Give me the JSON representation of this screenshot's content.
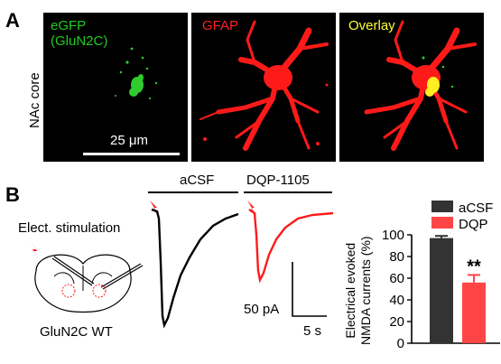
{
  "panel_a": {
    "letter": "A",
    "row_label": "NAc core",
    "images": [
      {
        "label_line1": "eGFP",
        "label_line2": "(GluN2C)",
        "label_color": "#22cc22"
      },
      {
        "label_line1": "GFAP",
        "label_line2": "",
        "label_color": "#ff2020"
      },
      {
        "label_line1": "Overlay",
        "label_line2": "",
        "label_color": "#ffff33"
      }
    ],
    "scale_bar_label": "25 μm"
  },
  "panel_b": {
    "letter": "B",
    "stimulation_label": "Elect. stimulation",
    "brain_label": "GluN2C WT",
    "trace_labels": {
      "acsf": "aCSF",
      "dqp": "DQP-1105"
    },
    "trace_colors": {
      "acsf": "#000000",
      "dqp": "#ff1a1a"
    },
    "scale_labels": {
      "current": "50 pA",
      "time": "5 s"
    }
  },
  "chart_data": {
    "type": "bar",
    "categories": [
      "aCSF",
      "DQP"
    ],
    "values": [
      97,
      56
    ],
    "errors": [
      2,
      7
    ],
    "colors": [
      "#333333",
      "#ff4545"
    ],
    "ylabel_line1": "Electrical evoked",
    "ylabel_line2": "NMDA currents (%)",
    "ylim": [
      0,
      100
    ],
    "yticks": [
      "0",
      "20",
      "40",
      "60",
      "80",
      "100"
    ],
    "significance": "**",
    "legend": [
      {
        "name": "aCSF",
        "color": "#333333"
      },
      {
        "name": "DQP",
        "color": "#ff4545"
      }
    ]
  }
}
